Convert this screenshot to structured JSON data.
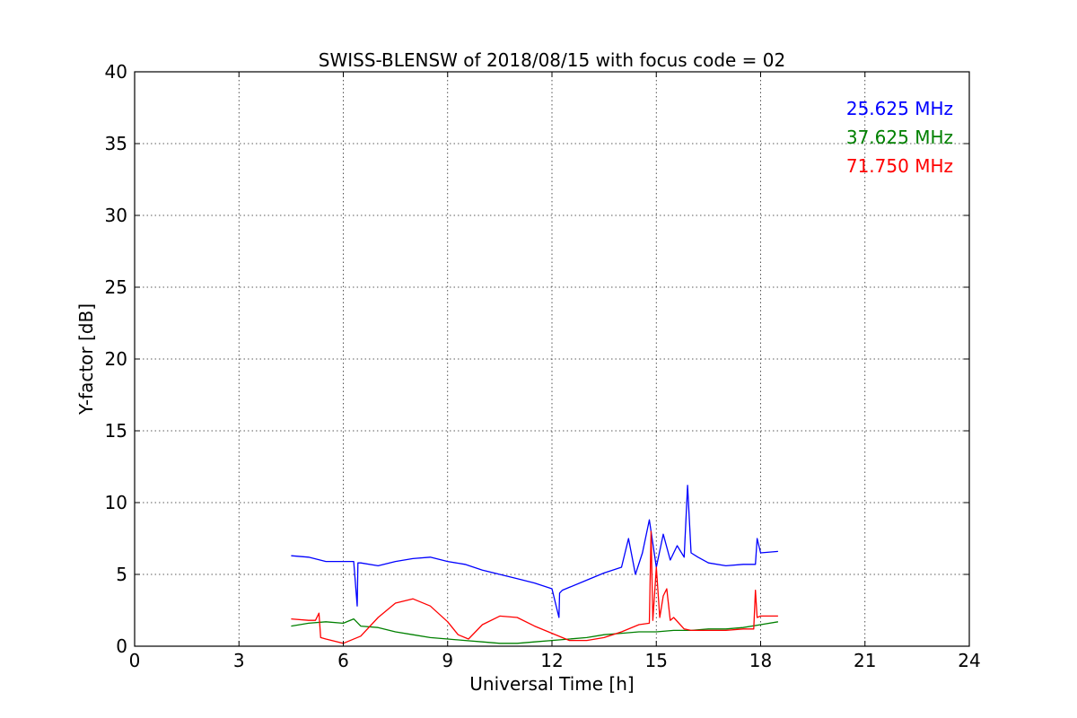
{
  "chart_data": {
    "type": "line",
    "title": "SWISS-BLENSW of 2018/08/15 with focus code = 02",
    "xlabel": "Universal Time [h]",
    "ylabel": "Y-factor [dB]",
    "xlim": [
      0,
      24
    ],
    "ylim": [
      0,
      40
    ],
    "xticks": [
      0,
      3,
      6,
      9,
      12,
      15,
      18,
      21,
      24
    ],
    "yticks": [
      0,
      5,
      10,
      15,
      20,
      25,
      30,
      35,
      40
    ],
    "grid": true,
    "legend_position": "top-right",
    "series": [
      {
        "name": "25.625 MHz",
        "color": "#0000ff",
        "x": [
          4.5,
          5.0,
          5.5,
          6.0,
          6.3,
          6.4,
          6.42,
          6.5,
          7.0,
          7.5,
          8.0,
          8.5,
          9.0,
          9.5,
          10.0,
          10.5,
          11.0,
          11.5,
          12.0,
          12.2,
          12.22,
          12.3,
          12.5,
          13.0,
          13.5,
          14.0,
          14.2,
          14.4,
          14.6,
          14.8,
          15.0,
          15.2,
          15.4,
          15.6,
          15.8,
          15.9,
          16.0,
          16.2,
          16.5,
          17.0,
          17.5,
          17.85,
          17.9,
          18.0,
          18.5
        ],
        "y": [
          6.3,
          6.2,
          5.9,
          5.9,
          5.9,
          2.8,
          5.8,
          5.8,
          5.6,
          5.9,
          6.1,
          6.2,
          5.9,
          5.7,
          5.3,
          5.0,
          4.7,
          4.4,
          4.0,
          2.0,
          3.7,
          3.9,
          4.1,
          4.6,
          5.1,
          5.5,
          7.5,
          5.0,
          6.5,
          8.8,
          5.5,
          7.8,
          6.0,
          7.0,
          6.2,
          11.2,
          6.5,
          6.2,
          5.8,
          5.6,
          5.7,
          5.7,
          7.5,
          6.5,
          6.6
        ]
      },
      {
        "name": "37.625 MHz",
        "color": "#008000",
        "x": [
          4.5,
          5.0,
          5.5,
          6.0,
          6.3,
          6.5,
          7.0,
          7.5,
          8.0,
          8.5,
          9.0,
          9.5,
          10.0,
          10.5,
          11.0,
          11.5,
          12.0,
          12.5,
          13.0,
          13.5,
          14.0,
          14.5,
          15.0,
          15.5,
          16.0,
          16.5,
          17.0,
          17.5,
          18.0,
          18.5
        ],
        "y": [
          1.4,
          1.6,
          1.7,
          1.6,
          1.9,
          1.4,
          1.3,
          1.0,
          0.8,
          0.6,
          0.5,
          0.4,
          0.3,
          0.2,
          0.2,
          0.3,
          0.4,
          0.5,
          0.6,
          0.8,
          0.9,
          1.0,
          1.0,
          1.1,
          1.1,
          1.2,
          1.2,
          1.3,
          1.5,
          1.7
        ]
      },
      {
        "name": "71.750 MHz",
        "color": "#ff0000",
        "x": [
          4.5,
          5.0,
          5.2,
          5.3,
          5.35,
          5.5,
          6.0,
          6.5,
          7.0,
          7.5,
          8.0,
          8.5,
          9.0,
          9.3,
          9.6,
          10.0,
          10.5,
          11.0,
          11.5,
          12.0,
          12.5,
          13.0,
          13.5,
          14.0,
          14.5,
          14.8,
          14.85,
          14.9,
          15.0,
          15.1,
          15.2,
          15.3,
          15.4,
          15.5,
          15.8,
          16.0,
          16.5,
          17.0,
          17.5,
          17.8,
          17.85,
          17.9,
          18.0,
          18.5
        ],
        "y": [
          1.9,
          1.8,
          1.8,
          2.3,
          0.6,
          0.5,
          0.2,
          0.7,
          2.0,
          3.0,
          3.3,
          2.8,
          1.7,
          0.8,
          0.5,
          1.5,
          2.1,
          2.0,
          1.4,
          0.9,
          0.4,
          0.4,
          0.6,
          1.0,
          1.5,
          1.6,
          8.0,
          1.8,
          5.5,
          2.0,
          3.5,
          4.0,
          1.8,
          2.0,
          1.2,
          1.1,
          1.1,
          1.1,
          1.2,
          1.2,
          3.9,
          2.0,
          2.1,
          2.1
        ]
      }
    ]
  }
}
